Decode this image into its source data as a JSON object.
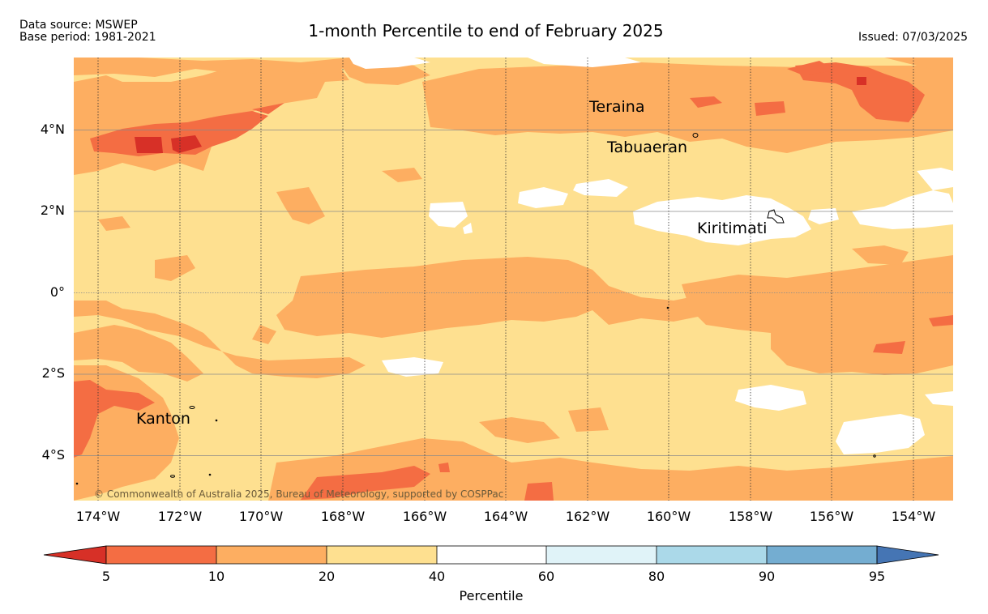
{
  "header": {
    "data_source": "Data source: MSWEP",
    "base_period": "Base period: 1981-2021",
    "title": "1-month Percentile to end of February 2025",
    "issued": "Issued: 07/03/2025"
  },
  "map": {
    "lat_labels": [
      "4°N",
      "2°N",
      "0°",
      "2°S",
      "4°S"
    ],
    "lon_labels": [
      "174°W",
      "172°W",
      "170°W",
      "168°W",
      "166°W",
      "164°W",
      "162°W",
      "160°W",
      "158°W",
      "156°W",
      "154°W"
    ],
    "places": {
      "teraina": "Teraina",
      "tabuaeran": "Tabuaeran",
      "kiritimati": "Kiritimati",
      "kanton": "Kanton"
    },
    "copyright": "© Commonwealth of Australia 2025, Bureau of Meteorology, supported by COSPPac",
    "colors": {
      "under5": "#d73027",
      "p5_10": "#f46d43",
      "p10_20": "#fdae61",
      "p20_40": "#fee090",
      "p40_60": "#ffffff",
      "p60_80": "#e0f3f8",
      "p80_90": "#abd9e9",
      "p90_95": "#74add1",
      "over95": "#4575b4"
    }
  },
  "colorbar": {
    "ticks": [
      "5",
      "10",
      "20",
      "40",
      "60",
      "80",
      "90",
      "95"
    ],
    "title": "Percentile"
  }
}
